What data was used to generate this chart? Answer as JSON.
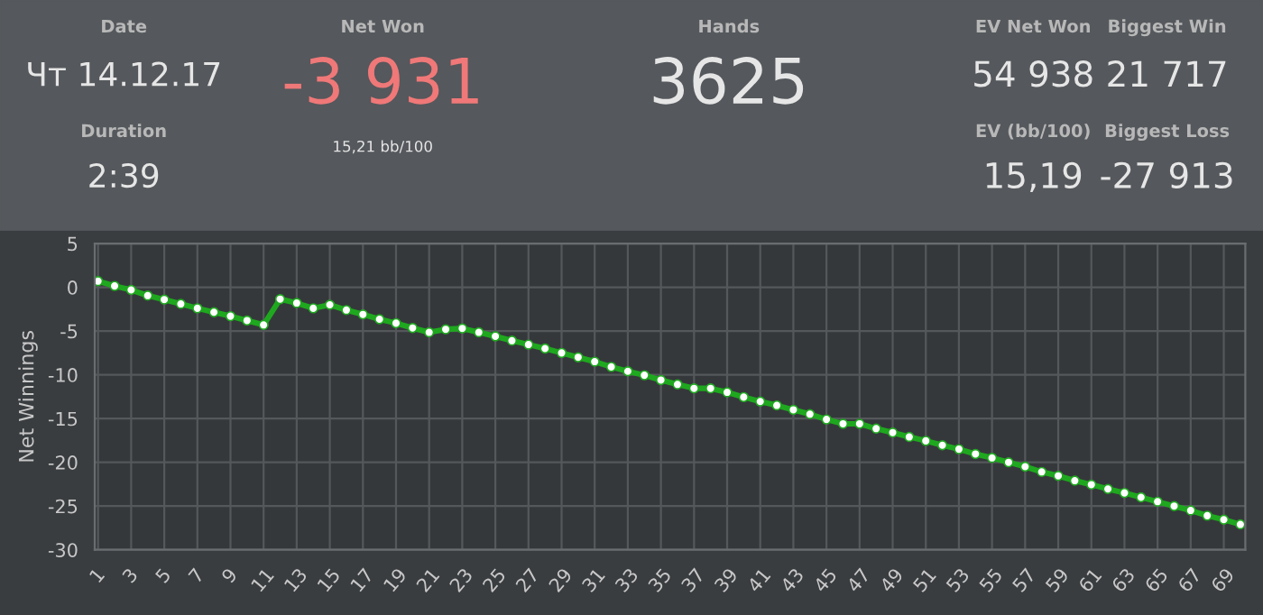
{
  "chart_data": [
    {
      "type": "other",
      "annotations": [
        "Date",
        "Чт 14.12.17",
        "Duration",
        "2:39",
        "Net Won",
        "-3 931",
        "15,21 bb/100",
        "Hands",
        "3625",
        "EV Net Won",
        "54 938",
        "Biggest Win",
        "21 717",
        "EV (bb/100)",
        "15,19",
        "Biggest Loss",
        "-27 913"
      ]
    },
    {
      "type": "line",
      "ylabel": "Net Winnings",
      "x": [
        1,
        2,
        3,
        4,
        5,
        6,
        7,
        8,
        9,
        10,
        11,
        12,
        13,
        14,
        15,
        16,
        17,
        18,
        19,
        20,
        21,
        22,
        23,
        24,
        25,
        26,
        27,
        28,
        29,
        30,
        31,
        32,
        33,
        34,
        35,
        36,
        37,
        38,
        39,
        40,
        41,
        42,
        43,
        44,
        45,
        46,
        47,
        48,
        49,
        50,
        51,
        52,
        53,
        54,
        55,
        56,
        57,
        58,
        59,
        60,
        61,
        62,
        63,
        64,
        65,
        66,
        67,
        68,
        69,
        70
      ],
      "series": [
        {
          "color": "#1fa81f",
          "values": [
            0.7,
            0.15,
            -0.3,
            -0.95,
            -1.4,
            -1.9,
            -2.4,
            -2.85,
            -3.3,
            -3.8,
            -4.3,
            -1.35,
            -1.8,
            -2.4,
            -2.0,
            -2.6,
            -3.1,
            -3.65,
            -4.1,
            -4.65,
            -5.15,
            -4.8,
            -4.7,
            -5.15,
            -5.6,
            -6.1,
            -6.55,
            -7.0,
            -7.5,
            -8.0,
            -8.5,
            -9.1,
            -9.6,
            -10.05,
            -10.6,
            -11.1,
            -11.55,
            -11.55,
            -12.0,
            -12.55,
            -13.05,
            -13.5,
            -14.0,
            -14.5,
            -15.1,
            -15.6,
            -15.6,
            -16.15,
            -16.6,
            -17.1,
            -17.55,
            -18.05,
            -18.5,
            -19.05,
            -19.5,
            -20.0,
            -20.5,
            -21.1,
            -21.55,
            -22.1,
            -22.55,
            -23.05,
            -23.5,
            -24.0,
            -24.5,
            -25.0,
            -25.5,
            -26.1,
            -26.55,
            -27.1
          ]
        }
      ],
      "xlim": [
        0.8,
        70.3
      ],
      "ylim": [
        -30,
        5
      ],
      "xticks": [
        1,
        3,
        5,
        7,
        9,
        11,
        13,
        15,
        17,
        19,
        21,
        23,
        25,
        27,
        29,
        31,
        33,
        35,
        37,
        39,
        41,
        43,
        45,
        47,
        49,
        51,
        53,
        55,
        57,
        59,
        61,
        63,
        65,
        67,
        69
      ],
      "yticks": [
        -30,
        -25,
        -20,
        -15,
        -10,
        -5,
        0,
        5
      ],
      "grid": true,
      "marker": "circle",
      "line_style": "solid"
    }
  ]
}
